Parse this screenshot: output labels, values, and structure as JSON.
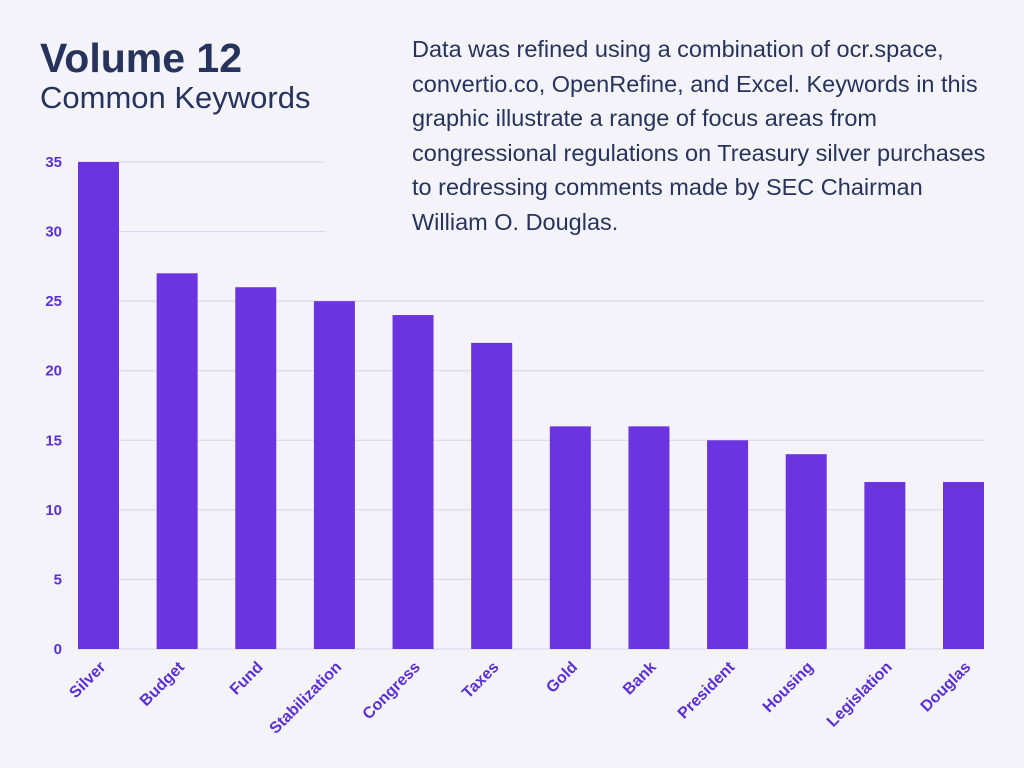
{
  "header": {
    "title": "Volume 12",
    "subtitle": "Common Keywords",
    "description": "Data was refined using a combination of ocr.space, convertio.co, OpenRefine, and Excel. Keywords in this graphic illustrate a range of focus areas from congressional regulations on Treasury silver purchases to redressing comments made by SEC Chairman William O. Douglas."
  },
  "chart_data": {
    "type": "bar",
    "title": "Volume 12",
    "subtitle": "Common Keywords",
    "categories": [
      "Silver",
      "Budget",
      "Fund",
      "Stabilization",
      "Congress",
      "Taxes",
      "Gold",
      "Bank",
      "President",
      "Housing",
      "Legislation",
      "Douglas"
    ],
    "values": [
      35,
      27,
      26,
      25,
      24,
      22,
      16,
      16,
      15,
      14,
      12,
      12
    ],
    "ylim": [
      0,
      35
    ],
    "yticks": [
      0,
      5,
      10,
      15,
      20,
      25,
      30,
      35
    ],
    "grid": true,
    "colors": {
      "bar": "#6c33e0",
      "tick": "#5b2fd6",
      "grid": "#d9d3ec",
      "text": "#26335c"
    }
  }
}
